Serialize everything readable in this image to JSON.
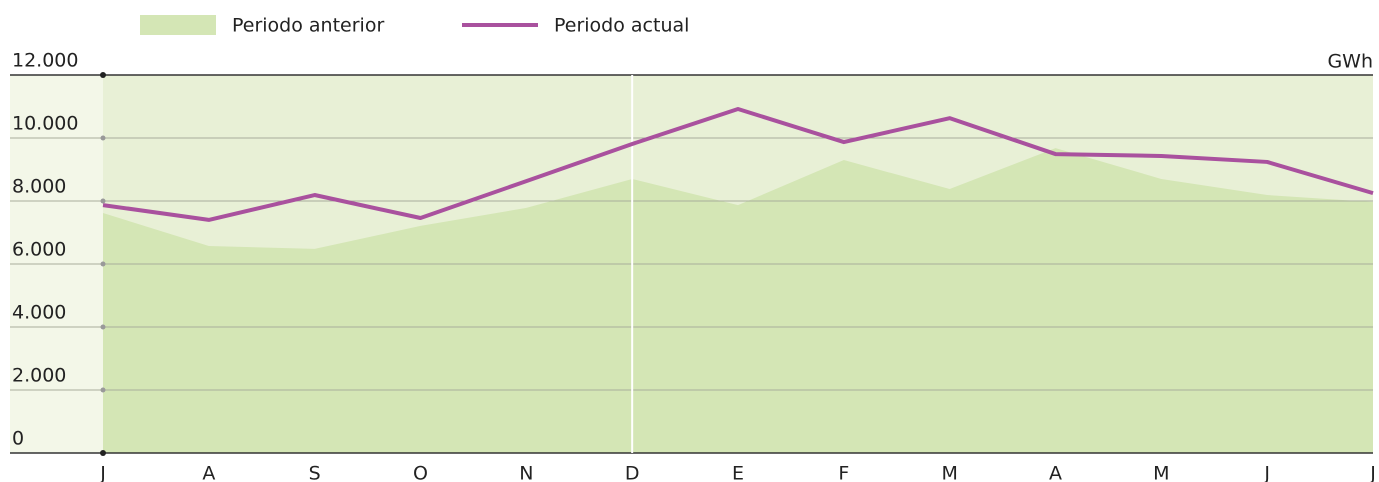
{
  "chart_data": {
    "type": "area-line",
    "unit": "GWh",
    "categories": [
      "J",
      "A",
      "S",
      "O",
      "N",
      "D",
      "E",
      "F",
      "M",
      "A",
      "M",
      "J",
      "J"
    ],
    "series": [
      {
        "name": "Periodo anterior",
        "color": "#d4e6b5",
        "kind": "area",
        "values": [
          7620,
          6570,
          6480,
          7210,
          7780,
          8700,
          7870,
          9300,
          8380,
          9680,
          8700,
          8190,
          7970
        ]
      },
      {
        "name": "Periodo actual",
        "color": "#a9519e",
        "kind": "line",
        "values": [
          7870,
          7400,
          8190,
          7460,
          8630,
          9810,
          10920,
          9870,
          10630,
          9490,
          9430,
          9240,
          8250
        ]
      }
    ],
    "ylim": [
      0,
      12000
    ],
    "yticks": [
      0,
      {
        "value": 2000,
        "label": "2.000"
      },
      {
        "value": 4000,
        "label": "4.000"
      },
      {
        "value": 6000,
        "label": "6.000"
      },
      {
        "value": 8000,
        "label": "8.000"
      },
      {
        "value": 10000,
        "label": "10.000"
      },
      {
        "value": 12000,
        "label": "12.000"
      }
    ],
    "grid": true
  }
}
